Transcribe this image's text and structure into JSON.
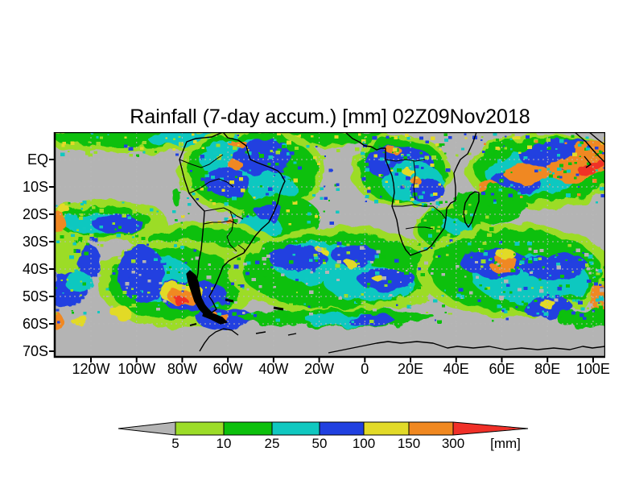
{
  "chart_data": {
    "type": "heatmap",
    "title": "Rainfall (7-day accum.) [mm] 02Z09Nov2018",
    "variable": "Rainfall",
    "accumulation": "7-day accum.",
    "valid_time": "02Z09Nov2018",
    "units": "mm",
    "y_axis": {
      "ticks": [
        "EQ",
        "10S",
        "20S",
        "30S",
        "40S",
        "50S",
        "60S",
        "70S"
      ]
    },
    "x_axis": {
      "ticks": [
        "120W",
        "100W",
        "80W",
        "60W",
        "40W",
        "20W",
        "0",
        "20E",
        "40E",
        "60E",
        "80E",
        "100E"
      ]
    },
    "colorbar": {
      "labels": [
        "5",
        "10",
        "25",
        "50",
        "100",
        "150",
        "300"
      ],
      "unit_label": "[mm]",
      "segment_colors": [
        "#b4b4b4",
        "#9cdc28",
        "#0cc00c",
        "#10c8c0",
        "#2040e0",
        "#e2da28",
        "#f08820",
        "#f03028"
      ],
      "level_meaning": {
        "dry": "<5",
        "lg": "5-10",
        "g": "10-25",
        "c": "25-50",
        "b": "50-100",
        "y": "100-150",
        "o": "150-300",
        "r": ">300"
      }
    },
    "map": {
      "background_color": "#b4b4b4",
      "land_outline_color": "#000000",
      "gridline_color": "#b9b9b9",
      "features": [
        [
          "lg",
          95,
          10,
          105,
          16
        ],
        [
          "g",
          90,
          7,
          92,
          11
        ],
        [
          "c",
          150,
          8,
          35,
          8
        ],
        [
          "lg",
          300,
          8,
          85,
          13
        ],
        [
          "g",
          300,
          6,
          72,
          9
        ],
        [
          "c",
          205,
          8,
          42,
          8
        ],
        [
          "b",
          240,
          7,
          26,
          6
        ],
        [
          "o",
          253,
          5,
          8,
          3
        ],
        [
          "y",
          300,
          4,
          7,
          3
        ],
        [
          "g",
          380,
          8,
          40,
          8
        ],
        [
          "lg",
          245,
          48,
          92,
          55
        ],
        [
          "g",
          245,
          48,
          82,
          48
        ],
        [
          "c",
          232,
          38,
          48,
          30
        ],
        [
          "b",
          258,
          32,
          36,
          22
        ],
        [
          "b",
          215,
          62,
          26,
          18
        ],
        [
          "c",
          270,
          70,
          30,
          20
        ],
        [
          "o",
          226,
          13,
          12,
          5
        ],
        [
          "o",
          224,
          40,
          9,
          6
        ],
        [
          "o",
          218,
          110,
          6,
          4
        ],
        [
          "g",
          280,
          105,
          48,
          28
        ],
        [
          "c",
          255,
          115,
          25,
          12
        ],
        [
          "b",
          268,
          100,
          18,
          10
        ],
        [
          "lg",
          430,
          48,
          62,
          45
        ],
        [
          "g",
          432,
          48,
          54,
          40
        ],
        [
          "b",
          428,
          38,
          42,
          22
        ],
        [
          "c",
          445,
          62,
          38,
          24
        ],
        [
          "b",
          462,
          72,
          22,
          14
        ],
        [
          "o",
          420,
          22,
          10,
          5
        ],
        [
          "y",
          440,
          50,
          8,
          4
        ],
        [
          "o",
          448,
          60,
          7,
          4
        ],
        [
          "lg",
          495,
          122,
          48,
          32
        ],
        [
          "g",
          492,
          120,
          40,
          26
        ],
        [
          "c",
          500,
          115,
          20,
          10
        ],
        [
          "g",
          520,
          95,
          25,
          20
        ],
        [
          "lg",
          62,
          110,
          78,
          26
        ],
        [
          "g",
          58,
          110,
          62,
          18
        ],
        [
          "c",
          46,
          112,
          36,
          12
        ],
        [
          "b",
          78,
          114,
          32,
          10
        ],
        [
          "o",
          5,
          112,
          9,
          14
        ],
        [
          "y",
          12,
          96,
          8,
          5
        ],
        [
          "lg",
          180,
          132,
          90,
          20
        ],
        [
          "g",
          185,
          133,
          70,
          13
        ],
        [
          "lg",
          20,
          152,
          26,
          30
        ],
        [
          "b",
          45,
          162,
          15,
          20
        ],
        [
          "b",
          15,
          196,
          26,
          22
        ],
        [
          "c",
          30,
          186,
          18,
          12
        ],
        [
          "lg",
          152,
          188,
          98,
          55
        ],
        [
          "g",
          148,
          188,
          82,
          45
        ],
        [
          "c",
          128,
          182,
          46,
          28
        ],
        [
          "b",
          108,
          176,
          30,
          34
        ],
        [
          "b",
          172,
          202,
          42,
          20
        ],
        [
          "y",
          158,
          200,
          28,
          13
        ],
        [
          "o",
          160,
          205,
          19,
          10
        ],
        [
          "r",
          157,
          210,
          9,
          5
        ],
        [
          "b",
          212,
          232,
          36,
          14
        ],
        [
          "o",
          205,
          228,
          10,
          6
        ],
        [
          "y",
          82,
          224,
          13,
          7
        ],
        [
          "o",
          4,
          236,
          8,
          11
        ],
        [
          "y",
          30,
          233,
          11,
          6
        ],
        [
          "lg",
          350,
          172,
          135,
          55
        ],
        [
          "g",
          350,
          172,
          118,
          46
        ],
        [
          "c",
          332,
          162,
          62,
          25
        ],
        [
          "c",
          392,
          188,
          56,
          22
        ],
        [
          "b",
          302,
          157,
          36,
          15
        ],
        [
          "b",
          372,
          152,
          30,
          12
        ],
        [
          "b",
          412,
          182,
          36,
          14
        ],
        [
          "y",
          366,
          162,
          7,
          4
        ],
        [
          "y",
          402,
          182,
          7,
          4
        ],
        [
          "y",
          332,
          147,
          6,
          4
        ],
        [
          "g",
          352,
          231,
          122,
          11
        ],
        [
          "c",
          362,
          233,
          52,
          8
        ],
        [
          "b",
          392,
          233,
          30,
          7
        ],
        [
          "lg",
          572,
          172,
          122,
          58
        ],
        [
          "g",
          572,
          172,
          106,
          50
        ],
        [
          "c",
          592,
          182,
          72,
          30
        ],
        [
          "b",
          546,
          162,
          42,
          18
        ],
        [
          "b",
          622,
          167,
          42,
          16
        ],
        [
          "o",
          558,
          164,
          19,
          11
        ],
        [
          "y",
          560,
          151,
          12,
          6
        ],
        [
          "b",
          612,
          217,
          32,
          12
        ],
        [
          "y",
          613,
          214,
          10,
          5
        ],
        [
          "o",
          677,
          207,
          12,
          19
        ],
        [
          "g",
          662,
          231,
          40,
          11
        ],
        [
          "lg",
          610,
          48,
          100,
          46
        ],
        [
          "g",
          610,
          46,
          88,
          40
        ],
        [
          "c",
          592,
          52,
          56,
          26
        ],
        [
          "b",
          638,
          32,
          58,
          22
        ],
        [
          "b",
          575,
          62,
          30,
          15
        ],
        [
          "o",
          588,
          52,
          30,
          12
        ],
        [
          "o",
          640,
          46,
          30,
          17
        ],
        [
          "o",
          668,
          32,
          26,
          19
        ],
        [
          "r",
          660,
          48,
          11,
          6
        ],
        [
          "r",
          672,
          38,
          9,
          6
        ],
        [
          "o",
          540,
          70,
          15,
          8
        ],
        [
          "g",
          548,
          90,
          36,
          24
        ],
        [
          "lg",
          162,
          62,
          7,
          14
        ],
        [
          "g",
          150,
          80,
          6,
          10
        ]
      ],
      "speckle_zones": [
        [
          0,
          0,
          684,
          30,
          150,
          [
            "g",
            "lg",
            "c",
            "b",
            "y"
          ]
        ],
        [
          150,
          25,
          200,
          90,
          90,
          [
            "c",
            "b",
            "g",
            "y"
          ]
        ],
        [
          380,
          10,
          110,
          80,
          70,
          [
            "b",
            "c",
            "g",
            "y"
          ]
        ],
        [
          0,
          85,
          150,
          55,
          60,
          [
            "g",
            "c",
            "lg"
          ]
        ],
        [
          440,
          85,
          100,
          75,
          45,
          [
            "g",
            "lg",
            "c"
          ]
        ],
        [
          530,
          5,
          154,
          85,
          80,
          [
            "b",
            "o",
            "g",
            "c"
          ]
        ],
        [
          0,
          130,
          684,
          105,
          260,
          [
            "lg",
            "g",
            "c",
            "b"
          ]
        ],
        [
          540,
          150,
          144,
          80,
          70,
          [
            "g",
            "c",
            "b"
          ]
        ],
        [
          60,
          140,
          620,
          85,
          90,
          [
            "dry"
          ]
        ]
      ],
      "coastlines": [
        [
          209,
          0,
          195,
          6,
          175,
          8,
          164,
          12,
          155,
          34,
          161,
          58,
          167,
          76,
          178,
          90,
          186,
          98,
          185,
          114,
          182,
          146,
          179,
          160,
          178,
          175,
          175,
          190,
          174,
          204,
          186,
          215,
          195,
          224,
          201,
          220,
          196,
          210,
          192,
          204,
          198,
          193,
          201,
          187,
          206,
          175,
          209,
          167,
          216,
          160,
          223,
          156,
          231,
          152,
          235,
          150,
          242,
          140,
          249,
          129,
          257,
          120,
          266,
          112,
          272,
          100,
          277,
          88,
          280,
          75,
          284,
          65,
          286,
          61,
          281,
          52,
          277,
          48,
          268,
          44,
          260,
          41,
          252,
          38,
          243,
          34,
          240,
          25,
          238,
          17,
          228,
          10,
          215,
          7,
          209,
          0
        ],
        [
          361,
          0,
          370,
          8,
          378,
          12,
          385,
          17,
          393,
          18,
          400,
          22,
          406,
          20,
          411,
          20,
          411,
          34,
          415,
          44,
          419,
          54,
          421,
          64,
          422,
          75,
          419,
          92,
          422,
          100,
          425,
          109,
          428,
          126,
          432,
          138,
          436,
          146,
          442,
          153,
          450,
          150,
          462,
          146,
          468,
          141,
          473,
          134,
          479,
          126,
          484,
          119,
          486,
          108,
          487,
          95,
          492,
          88,
          498,
          85,
          498,
          68,
          496,
          51,
          500,
          42,
          504,
          34,
          509,
          30,
          513,
          27,
          520,
          12,
          524,
          0
        ],
        [
          510,
          88,
          516,
          78,
          522,
          74,
          527,
          75,
          527,
          86,
          522,
          100,
          518,
          112,
          514,
          118,
          510,
          112,
          508,
          100,
          510,
          88
        ],
        [
          646,
          0,
          660,
          12,
          672,
          26,
          684,
          38
        ],
        [
          664,
          0,
          676,
          10,
          684,
          16
        ],
        [
          658,
          30,
          666,
          40,
          660,
          44
        ],
        [
          340,
          274,
          360,
          270,
          380,
          266,
          400,
          262,
          414,
          260,
          430,
          262,
          450,
          260,
          470,
          262,
          488,
          268,
          500,
          266,
          520,
          268,
          540,
          266,
          560,
          270,
          580,
          268,
          600,
          270,
          620,
          268,
          640,
          270,
          656,
          266,
          668,
          268,
          684,
          266
        ],
        [
          250,
          250,
          262,
          248
        ],
        [
          290,
          252,
          300,
          250
        ],
        [
          180,
          272,
          186,
          262,
          192,
          254,
          200,
          248,
          210,
          244,
          220,
          246,
          228,
          252
        ]
      ],
      "filled_land": [
        [
          168,
          172,
          175,
          178,
          178,
          186,
          180,
          196,
          182,
          206,
          186,
          214,
          192,
          222,
          196,
          228,
          188,
          228,
          180,
          220,
          174,
          210,
          170,
          198,
          166,
          186,
          164,
          176
        ],
        [
          186,
          222,
          198,
          226,
          208,
          230,
          214,
          236,
          206,
          238,
          194,
          232,
          184,
          228
        ]
      ],
      "borders": [
        [
          155,
          34,
          170,
          40,
          182,
          44,
          192,
          40,
          200,
          34,
          209,
          28
        ],
        [
          167,
          76,
          180,
          70,
          192,
          62,
          204,
          58,
          214,
          62,
          222,
          68
        ],
        [
          186,
          98,
          198,
          96,
          210,
          94,
          218,
          98,
          226,
          104,
          234,
          108
        ],
        [
          185,
          114,
          196,
          112,
          208,
          112,
          218,
          110,
          226,
          114
        ],
        [
          218,
          98,
          222,
          110,
          220,
          122,
          214,
          130,
          218,
          140,
          226,
          148
        ],
        [
          228,
          140,
          236,
          146,
          235,
          150
        ],
        [
          411,
          34,
          424,
          36,
          436,
          34,
          448,
          36,
          460,
          34
        ],
        [
          446,
          36,
          448,
          52,
          446,
          68,
          448,
          84
        ],
        [
          419,
          92,
          432,
          92,
          446,
          90,
          458,
          92,
          470,
          92
        ],
        [
          436,
          120,
          448,
          118,
          460,
          118,
          470,
          120
        ],
        [
          470,
          92,
          480,
          100,
          486,
          108
        ]
      ],
      "island_dashes": [
        [
          212,
          208,
          222,
          210,
          3
        ],
        [
          272,
          218,
          284,
          220,
          3
        ],
        [
          168,
          240,
          176,
          238,
          2
        ]
      ]
    }
  }
}
